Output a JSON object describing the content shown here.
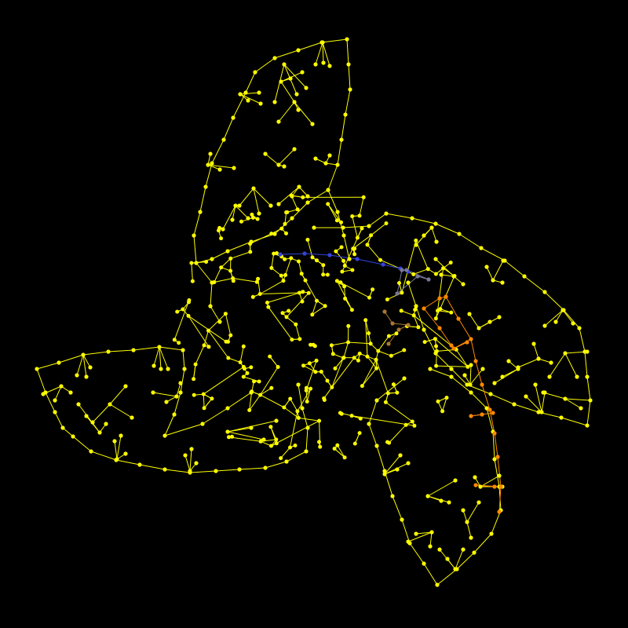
{
  "graph": {
    "background": "#000000",
    "default_color": "#ffff00",
    "highlight_blue": "#3344dd",
    "highlight_gray": "#777799",
    "highlight_orange": "#ff8800",
    "highlight_brown": "#aa7733",
    "description_kind": "three-armed pinwheel network of nodes and edges",
    "arm_count": 3
  }
}
